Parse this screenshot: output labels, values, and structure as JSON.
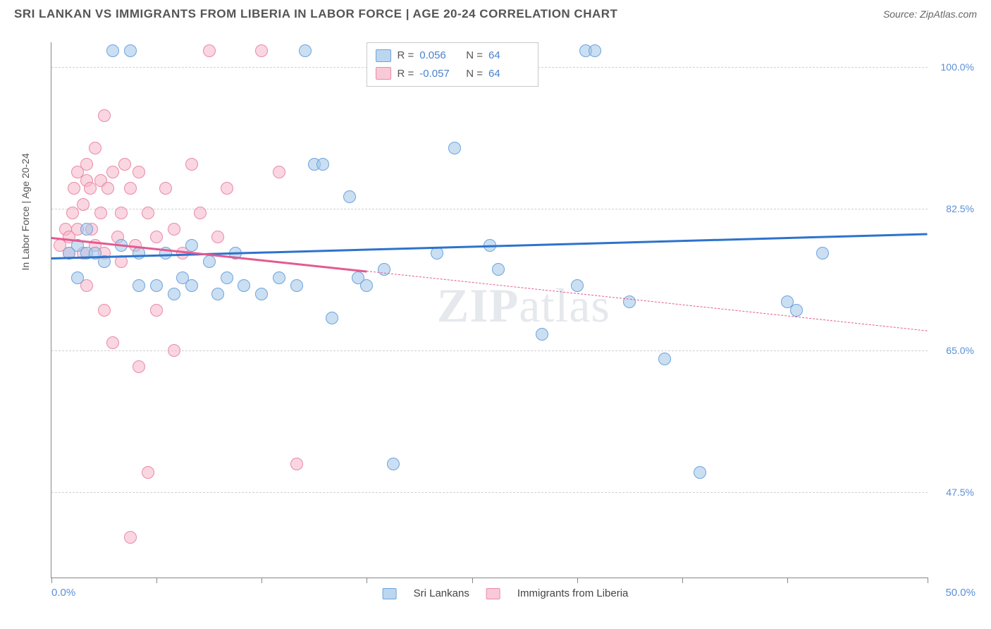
{
  "header": {
    "title": "SRI LANKAN VS IMMIGRANTS FROM LIBERIA IN LABOR FORCE | AGE 20-24 CORRELATION CHART",
    "source": "Source: ZipAtlas.com"
  },
  "chart": {
    "type": "scatter",
    "ylabel": "In Labor Force | Age 20-24",
    "xlim": [
      0,
      50
    ],
    "ylim": [
      37,
      103
    ],
    "xtick_positions": [
      0,
      6,
      12,
      18,
      24,
      30,
      36,
      42,
      50
    ],
    "xtick_labels": {
      "first": "0.0%",
      "last": "50.0%"
    },
    "ytick_positions": [
      47.5,
      65.0,
      82.5,
      100.0
    ],
    "ytick_labels": [
      "47.5%",
      "65.0%",
      "82.5%",
      "100.0%"
    ],
    "background_color": "#ffffff",
    "grid_color": "#d0d0d0",
    "axis_color": "#888888",
    "marker_radius": 9,
    "watermark": {
      "first": "ZIP",
      "rest": "atlas"
    },
    "series": [
      {
        "id": "sri_lankans",
        "label": "Sri Lankans",
        "fill": "rgba(160,196,232,0.55)",
        "stroke": "#6da3dd",
        "trend_color": "#2d73cc",
        "trend_start": [
          0,
          76.5
        ],
        "trend_end": [
          50,
          79.5
        ],
        "trend_dashed_from": null,
        "r": "0.056",
        "n": "64",
        "points": [
          [
            1,
            77
          ],
          [
            1.5,
            78
          ],
          [
            2,
            77
          ],
          [
            2,
            80
          ],
          [
            2.5,
            77
          ],
          [
            3,
            76
          ],
          [
            1.5,
            74
          ],
          [
            3.5,
            102
          ],
          [
            4,
            78
          ],
          [
            4.5,
            102
          ],
          [
            5,
            77
          ],
          [
            5,
            73
          ],
          [
            6,
            73
          ],
          [
            6.5,
            77
          ],
          [
            7,
            72
          ],
          [
            7.5,
            74
          ],
          [
            8,
            78
          ],
          [
            8,
            73
          ],
          [
            9,
            76
          ],
          [
            9.5,
            72
          ],
          [
            10,
            74
          ],
          [
            10.5,
            77
          ],
          [
            11,
            73
          ],
          [
            12,
            72
          ],
          [
            13,
            74
          ],
          [
            14,
            73
          ],
          [
            14.5,
            102
          ],
          [
            15,
            88
          ],
          [
            15.5,
            88
          ],
          [
            16,
            69
          ],
          [
            17,
            84
          ],
          [
            17.5,
            74
          ],
          [
            18,
            73
          ],
          [
            18.5,
            102
          ],
          [
            19,
            75
          ],
          [
            19.5,
            51
          ],
          [
            22,
            77
          ],
          [
            23,
            90
          ],
          [
            25,
            78
          ],
          [
            25.5,
            75
          ],
          [
            28,
            67
          ],
          [
            30,
            73
          ],
          [
            30.5,
            102
          ],
          [
            31,
            102
          ],
          [
            33,
            71
          ],
          [
            35,
            64
          ],
          [
            37,
            50
          ],
          [
            42,
            71
          ],
          [
            42.5,
            70
          ],
          [
            44,
            77
          ]
        ]
      },
      {
        "id": "immigrants_liberia",
        "label": "Immigrants from Liberia",
        "fill": "rgba(245,180,200,0.55)",
        "stroke": "#e989a9",
        "trend_color": "#e35a8f",
        "trend_start": [
          0,
          79.0
        ],
        "trend_end": [
          50,
          67.5
        ],
        "trend_dashed_from": 18,
        "r": "-0.057",
        "n": "64",
        "points": [
          [
            0.5,
            78
          ],
          [
            0.8,
            80
          ],
          [
            1,
            79
          ],
          [
            1,
            77
          ],
          [
            1.2,
            82
          ],
          [
            1.3,
            85
          ],
          [
            1.5,
            87
          ],
          [
            1.5,
            80
          ],
          [
            1.8,
            77
          ],
          [
            1.8,
            83
          ],
          [
            2,
            86
          ],
          [
            2,
            88
          ],
          [
            2,
            73
          ],
          [
            2.2,
            85
          ],
          [
            2.3,
            80
          ],
          [
            2.5,
            90
          ],
          [
            2.5,
            78
          ],
          [
            2.8,
            86
          ],
          [
            2.8,
            82
          ],
          [
            3,
            94
          ],
          [
            3,
            77
          ],
          [
            3,
            70
          ],
          [
            3.2,
            85
          ],
          [
            3.5,
            87
          ],
          [
            3.5,
            66
          ],
          [
            3.8,
            79
          ],
          [
            4,
            82
          ],
          [
            4,
            76
          ],
          [
            4.2,
            88
          ],
          [
            4.5,
            85
          ],
          [
            4.5,
            42
          ],
          [
            4.8,
            78
          ],
          [
            5,
            87
          ],
          [
            5,
            63
          ],
          [
            5.5,
            82
          ],
          [
            5.5,
            50
          ],
          [
            6,
            79
          ],
          [
            6,
            70
          ],
          [
            6.5,
            85
          ],
          [
            7,
            80
          ],
          [
            7,
            65
          ],
          [
            7.5,
            77
          ],
          [
            8,
            88
          ],
          [
            8.5,
            82
          ],
          [
            9,
            102
          ],
          [
            9.5,
            79
          ],
          [
            10,
            85
          ],
          [
            12,
            102
          ],
          [
            13,
            87
          ],
          [
            14,
            51
          ]
        ]
      }
    ]
  },
  "legend_stats": {
    "r_label": "R =",
    "n_label": "N ="
  },
  "colors": {
    "ytick_label": "#5b8fd6",
    "stat_value": "#4a82cd"
  }
}
